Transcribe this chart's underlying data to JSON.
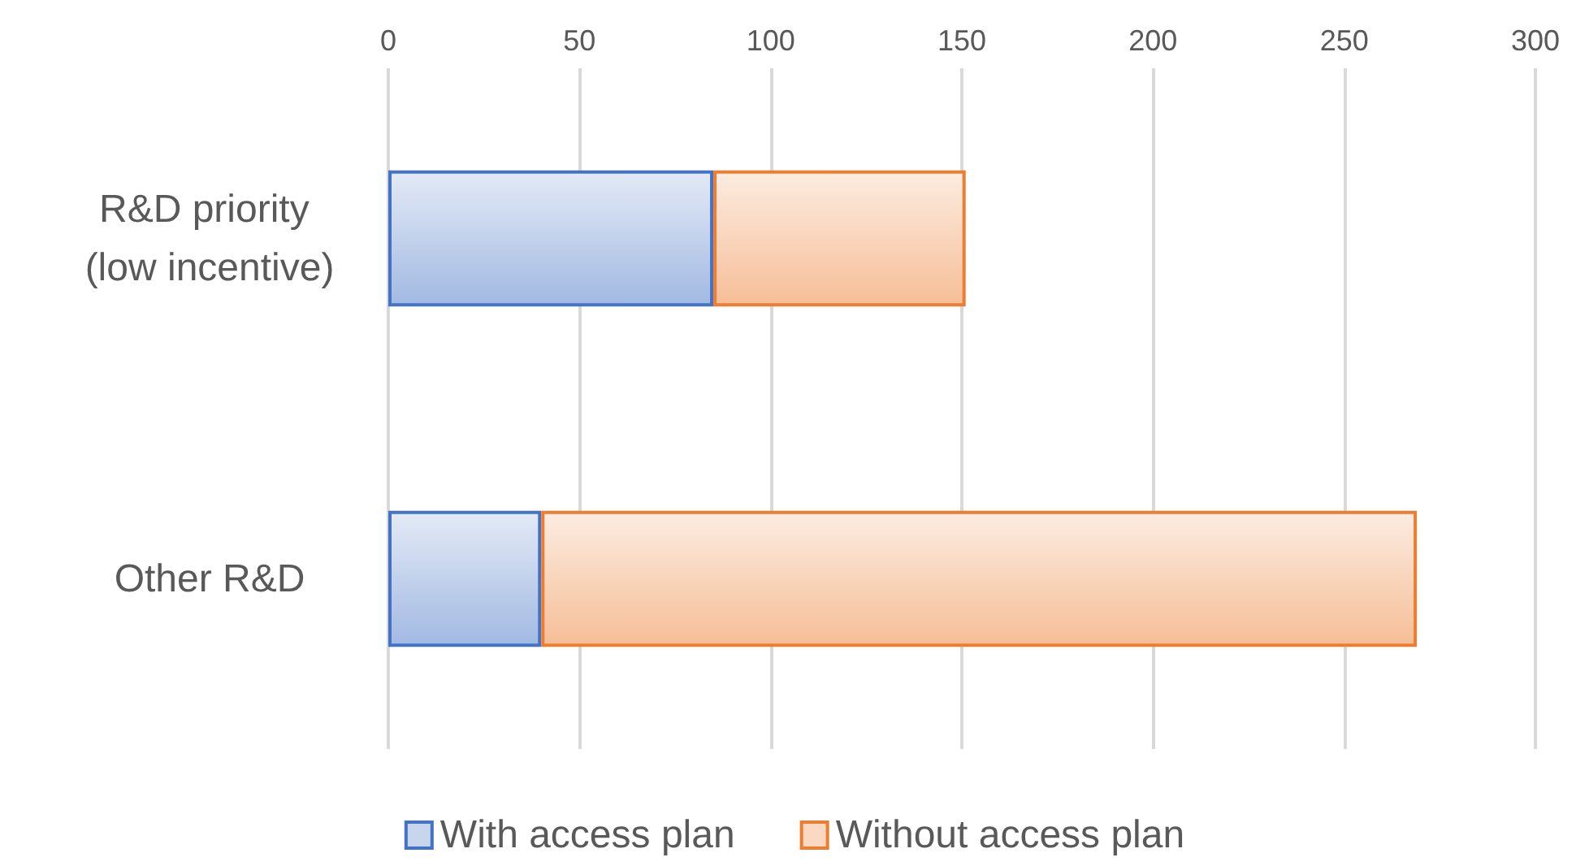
{
  "chart_data": {
    "type": "bar",
    "orientation": "horizontal",
    "stacked": true,
    "categories": [
      "R&D priority (low incentive)",
      "Other R&D"
    ],
    "series": [
      {
        "name": "With access plan",
        "color": "#4472c4",
        "values": [
          85,
          40
        ]
      },
      {
        "name": "Without access plan",
        "color": "#ed7d31",
        "values": [
          66,
          229
        ]
      }
    ],
    "xlim": [
      0,
      300
    ],
    "xticks": [
      0,
      50,
      100,
      150,
      200,
      250,
      300
    ],
    "grid": "x",
    "legend": "bottom"
  }
}
